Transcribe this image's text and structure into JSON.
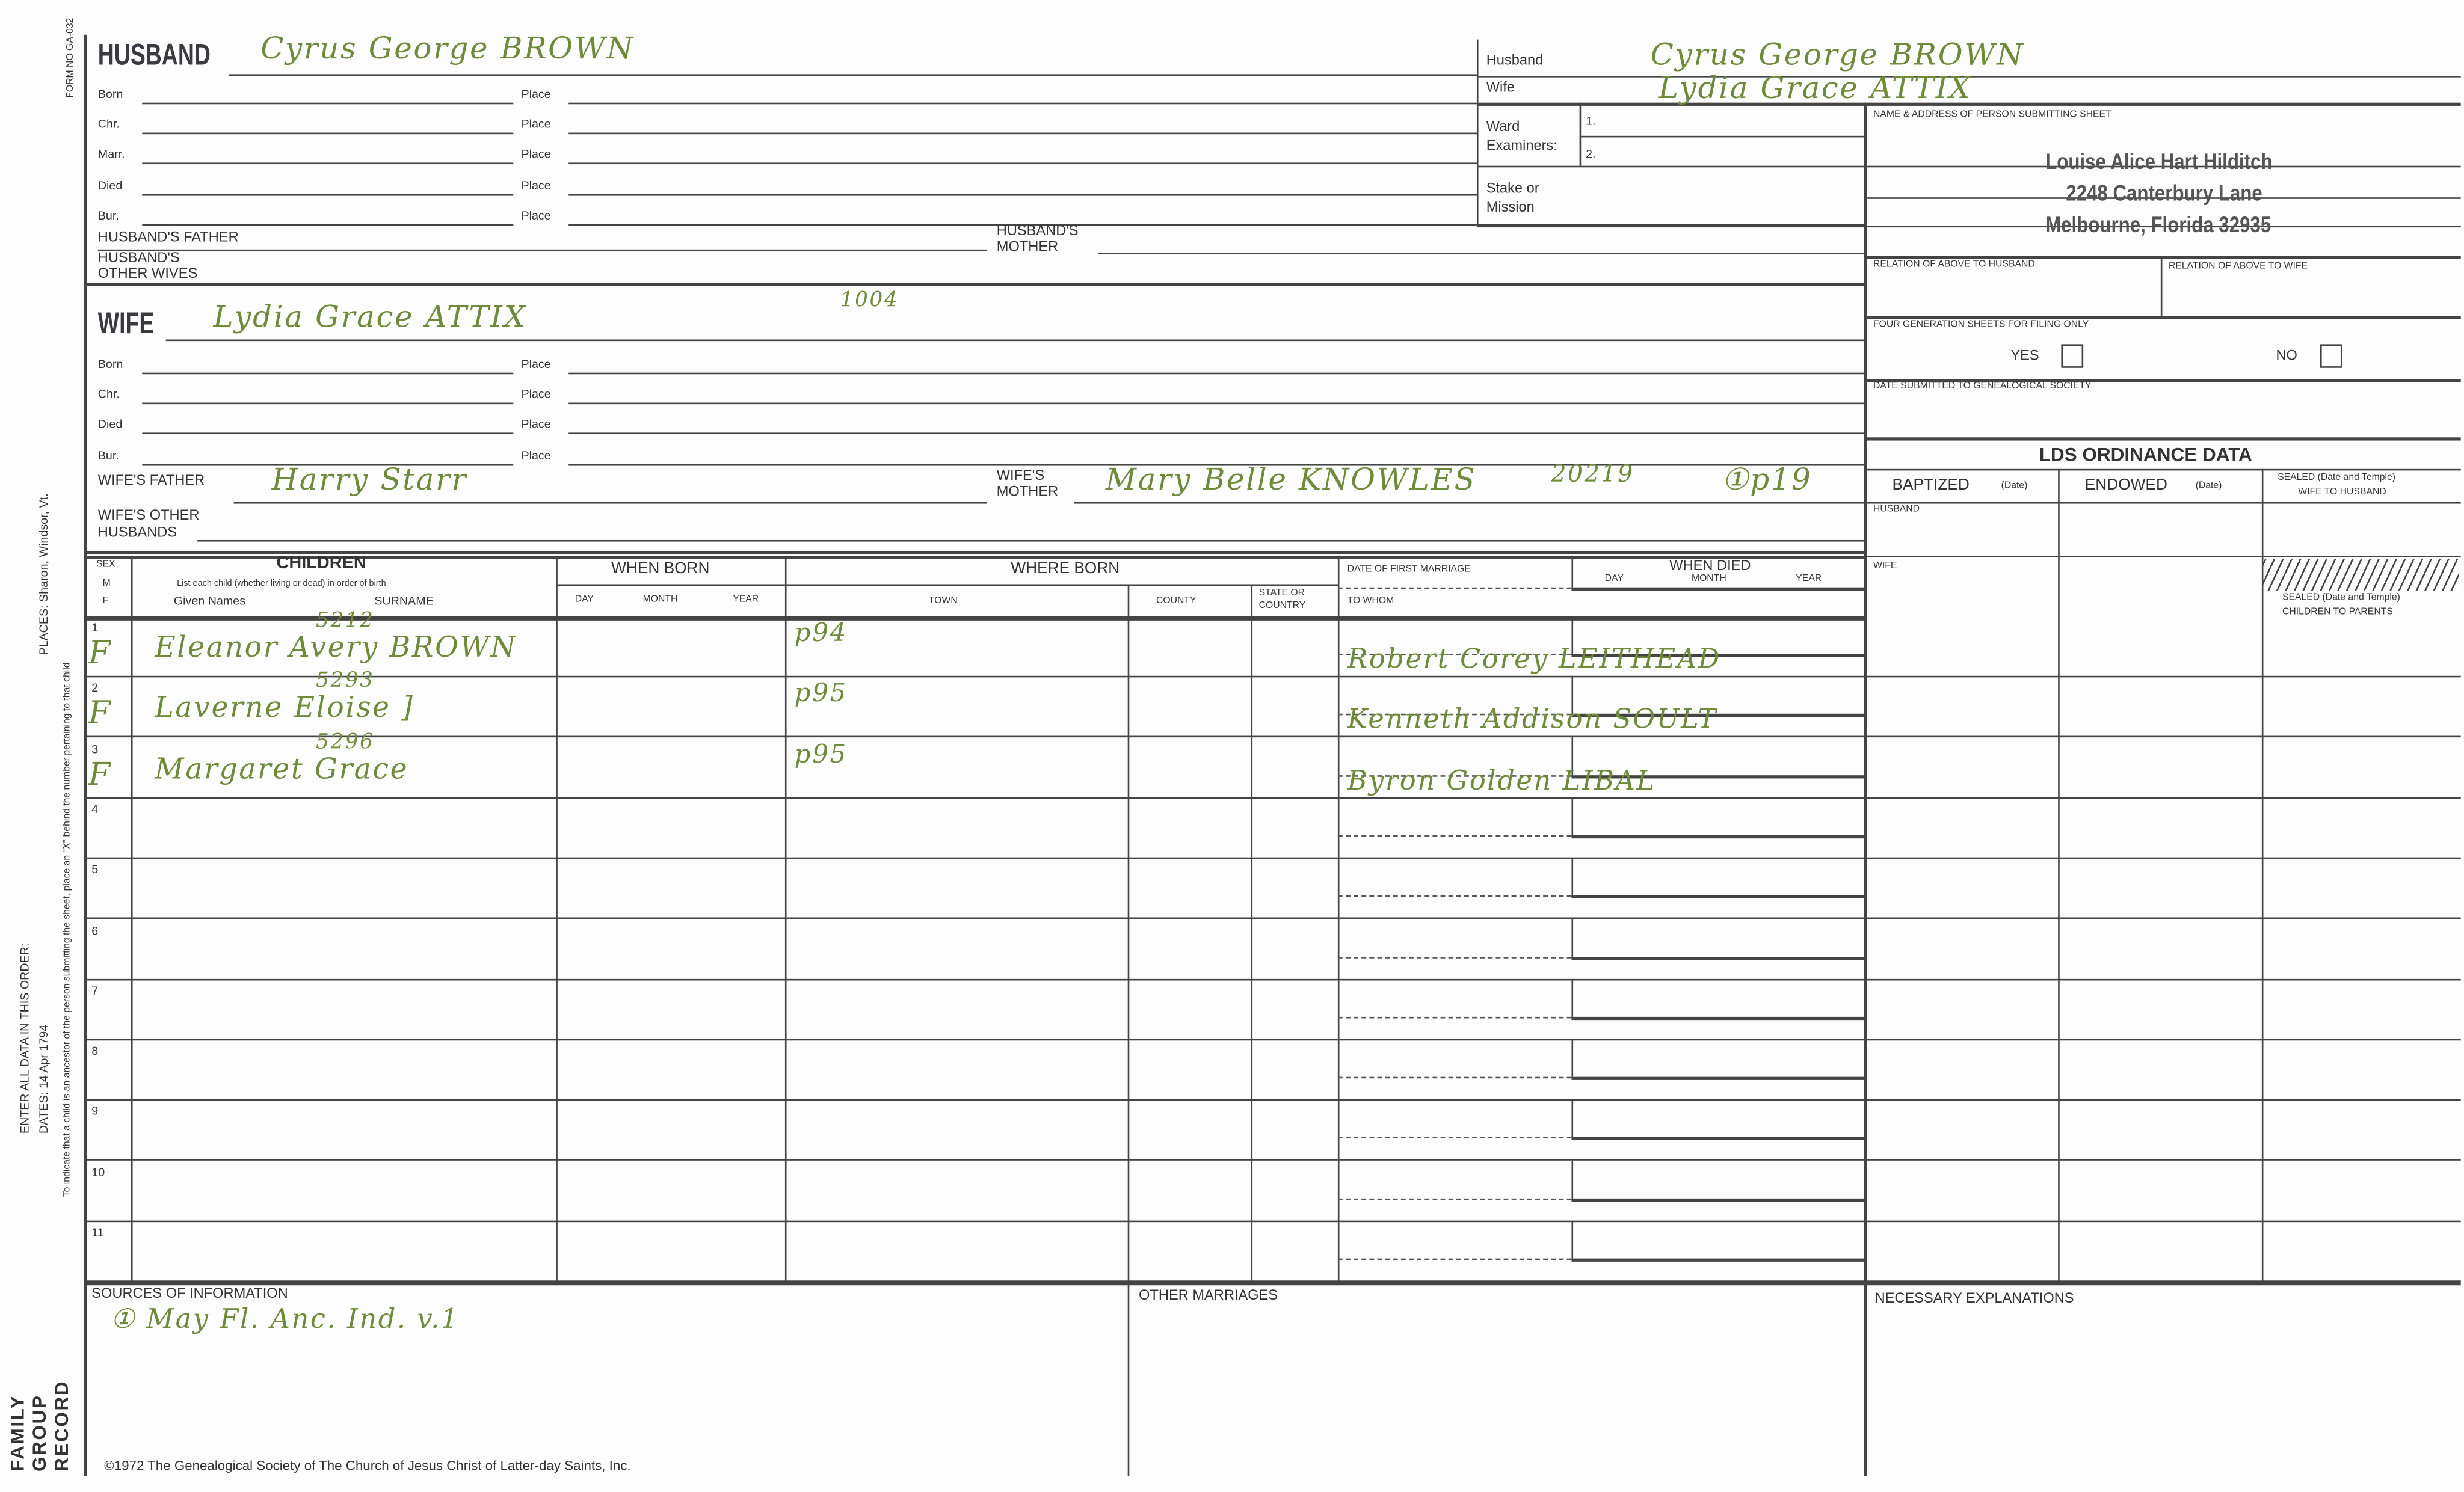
{
  "side": {
    "form_no": "FORM NO GA-032",
    "enter_order": "ENTER ALL DATA IN THIS ORDER:",
    "dates": "DATES: 14 Apr 1794",
    "places": "PLACES: Sharon, Windsor, Vt.",
    "ancestor_note": "To indicate that a child is an ancestor of the person submitting the sheet, place an \"X\" behind the number pertaining to that child",
    "record_title": [
      "FAMILY",
      "GROUP",
      "RECORD"
    ]
  },
  "labels": {
    "husband": "HUSBAND",
    "wife": "WIFE",
    "born": "Born",
    "chr": "Chr.",
    "marr": "Marr.",
    "died": "Died",
    "bur": "Bur.",
    "place": "Place",
    "husbands_father": "HUSBAND'S  FATHER",
    "husbands_mother_1": "HUSBAND'S",
    "husbands_mother_2": "MOTHER",
    "other_wives_1": "HUSBAND'S",
    "other_wives_2": "OTHER WIVES",
    "wifes_father": "WIFE'S  FATHER",
    "wifes_mother_1": "WIFE'S",
    "wifes_mother_2": "MOTHER",
    "other_husbands_1": "WIFE'S OTHER",
    "other_husbands_2": "HUSBANDS"
  },
  "husband": {
    "name": "Cyrus  George   BROWN"
  },
  "wife": {
    "name": "Lydia  Grace   ATTIX",
    "note": "1004",
    "father": "Harry  Starr",
    "mother": "Mary Belle KNOWLES",
    "mother_note": "20219",
    "mother_ref": "①p19"
  },
  "top_right": {
    "husband_label": "Husband",
    "wife_label": "Wife",
    "husband_name": "Cyrus  George  BROWN",
    "wife_name": "Lydia  Grace  ATTIX",
    "ward_label_1": "Ward",
    "ward_label_2": "Examiners:",
    "examiner_1": "1.",
    "examiner_2": "2.",
    "stake_1": "Stake or",
    "stake_2": "Mission"
  },
  "submitter": {
    "label": "NAME & ADDRESS OF PERSON SUBMITTING SHEET",
    "name": "Louise Alice Hart Hilditch",
    "street": "2248 Canterbury Lane",
    "city": "Melbourne, Florida 32935",
    "relation_husband": "RELATION OF ABOVE TO HUSBAND",
    "relation_wife": "RELATION OF ABOVE TO WIFE",
    "four_gen": "FOUR GENERATION SHEETS FOR FILING ONLY",
    "yes": "YES",
    "no": "NO",
    "date_submitted": "DATE SUBMITTED TO GENEALOGICAL SOCIETY"
  },
  "lds": {
    "title": "LDS ORDINANCE DATA",
    "baptized": "BAPTIZED",
    "endowed": "ENDOWED",
    "date": "(Date)",
    "sealed_wife_1": "SEALED (Date and Temple)",
    "sealed_wife_2": "WIFE TO HUSBAND",
    "husband": "HUSBAND",
    "wife": "WIFE",
    "sealed_children_1": "SEALED (Date and Temple)",
    "sealed_children_2": "CHILDREN TO PARENTS"
  },
  "children_header": {
    "sex": "SEX",
    "m": "M",
    "f": "F",
    "title": "CHILDREN",
    "instruction": "List each child (whether living or dead) in order of birth",
    "given": "Given Names",
    "surname": "SURNAME",
    "when_born": "WHEN BORN",
    "day": "DAY",
    "month": "MONTH",
    "year": "YEAR",
    "where_born": "WHERE BORN",
    "town": "TOWN",
    "county": "COUNTY",
    "state_1": "STATE OR",
    "state_2": "COUNTRY",
    "first_marriage": "DATE OF FIRST MARRIAGE",
    "to_whom": "TO WHOM",
    "when_died": "WHEN DIED"
  },
  "children": [
    {
      "num": "1",
      "sex": "F",
      "id": "5212",
      "name": "Eleanor Avery BROWN",
      "town": "p94",
      "spouse": "Robert Corey LEITHEAD"
    },
    {
      "num": "2",
      "sex": "F",
      "id": "5293",
      "name": "Laverne Eloise ]",
      "town": "p95",
      "spouse": "Kenneth Addison SOULT"
    },
    {
      "num": "3",
      "sex": "F",
      "id": "5296",
      "name": "Margaret Grace",
      "town": "p95",
      "spouse": "Byron Golden LIBAL"
    },
    {
      "num": "4"
    },
    {
      "num": "5"
    },
    {
      "num": "6"
    },
    {
      "num": "7"
    },
    {
      "num": "8"
    },
    {
      "num": "9"
    },
    {
      "num": "10"
    },
    {
      "num": "11"
    }
  ],
  "bottom": {
    "sources_label": "SOURCES OF INFORMATION",
    "sources": "① May Fl. Anc. Ind. v.1",
    "other_marriages": "OTHER MARRIAGES",
    "explanations": "NECESSARY EXPLANATIONS",
    "copyright": "©1972 The Genealogical Society of The Church of Jesus Christ of Latter-day Saints, Inc."
  }
}
